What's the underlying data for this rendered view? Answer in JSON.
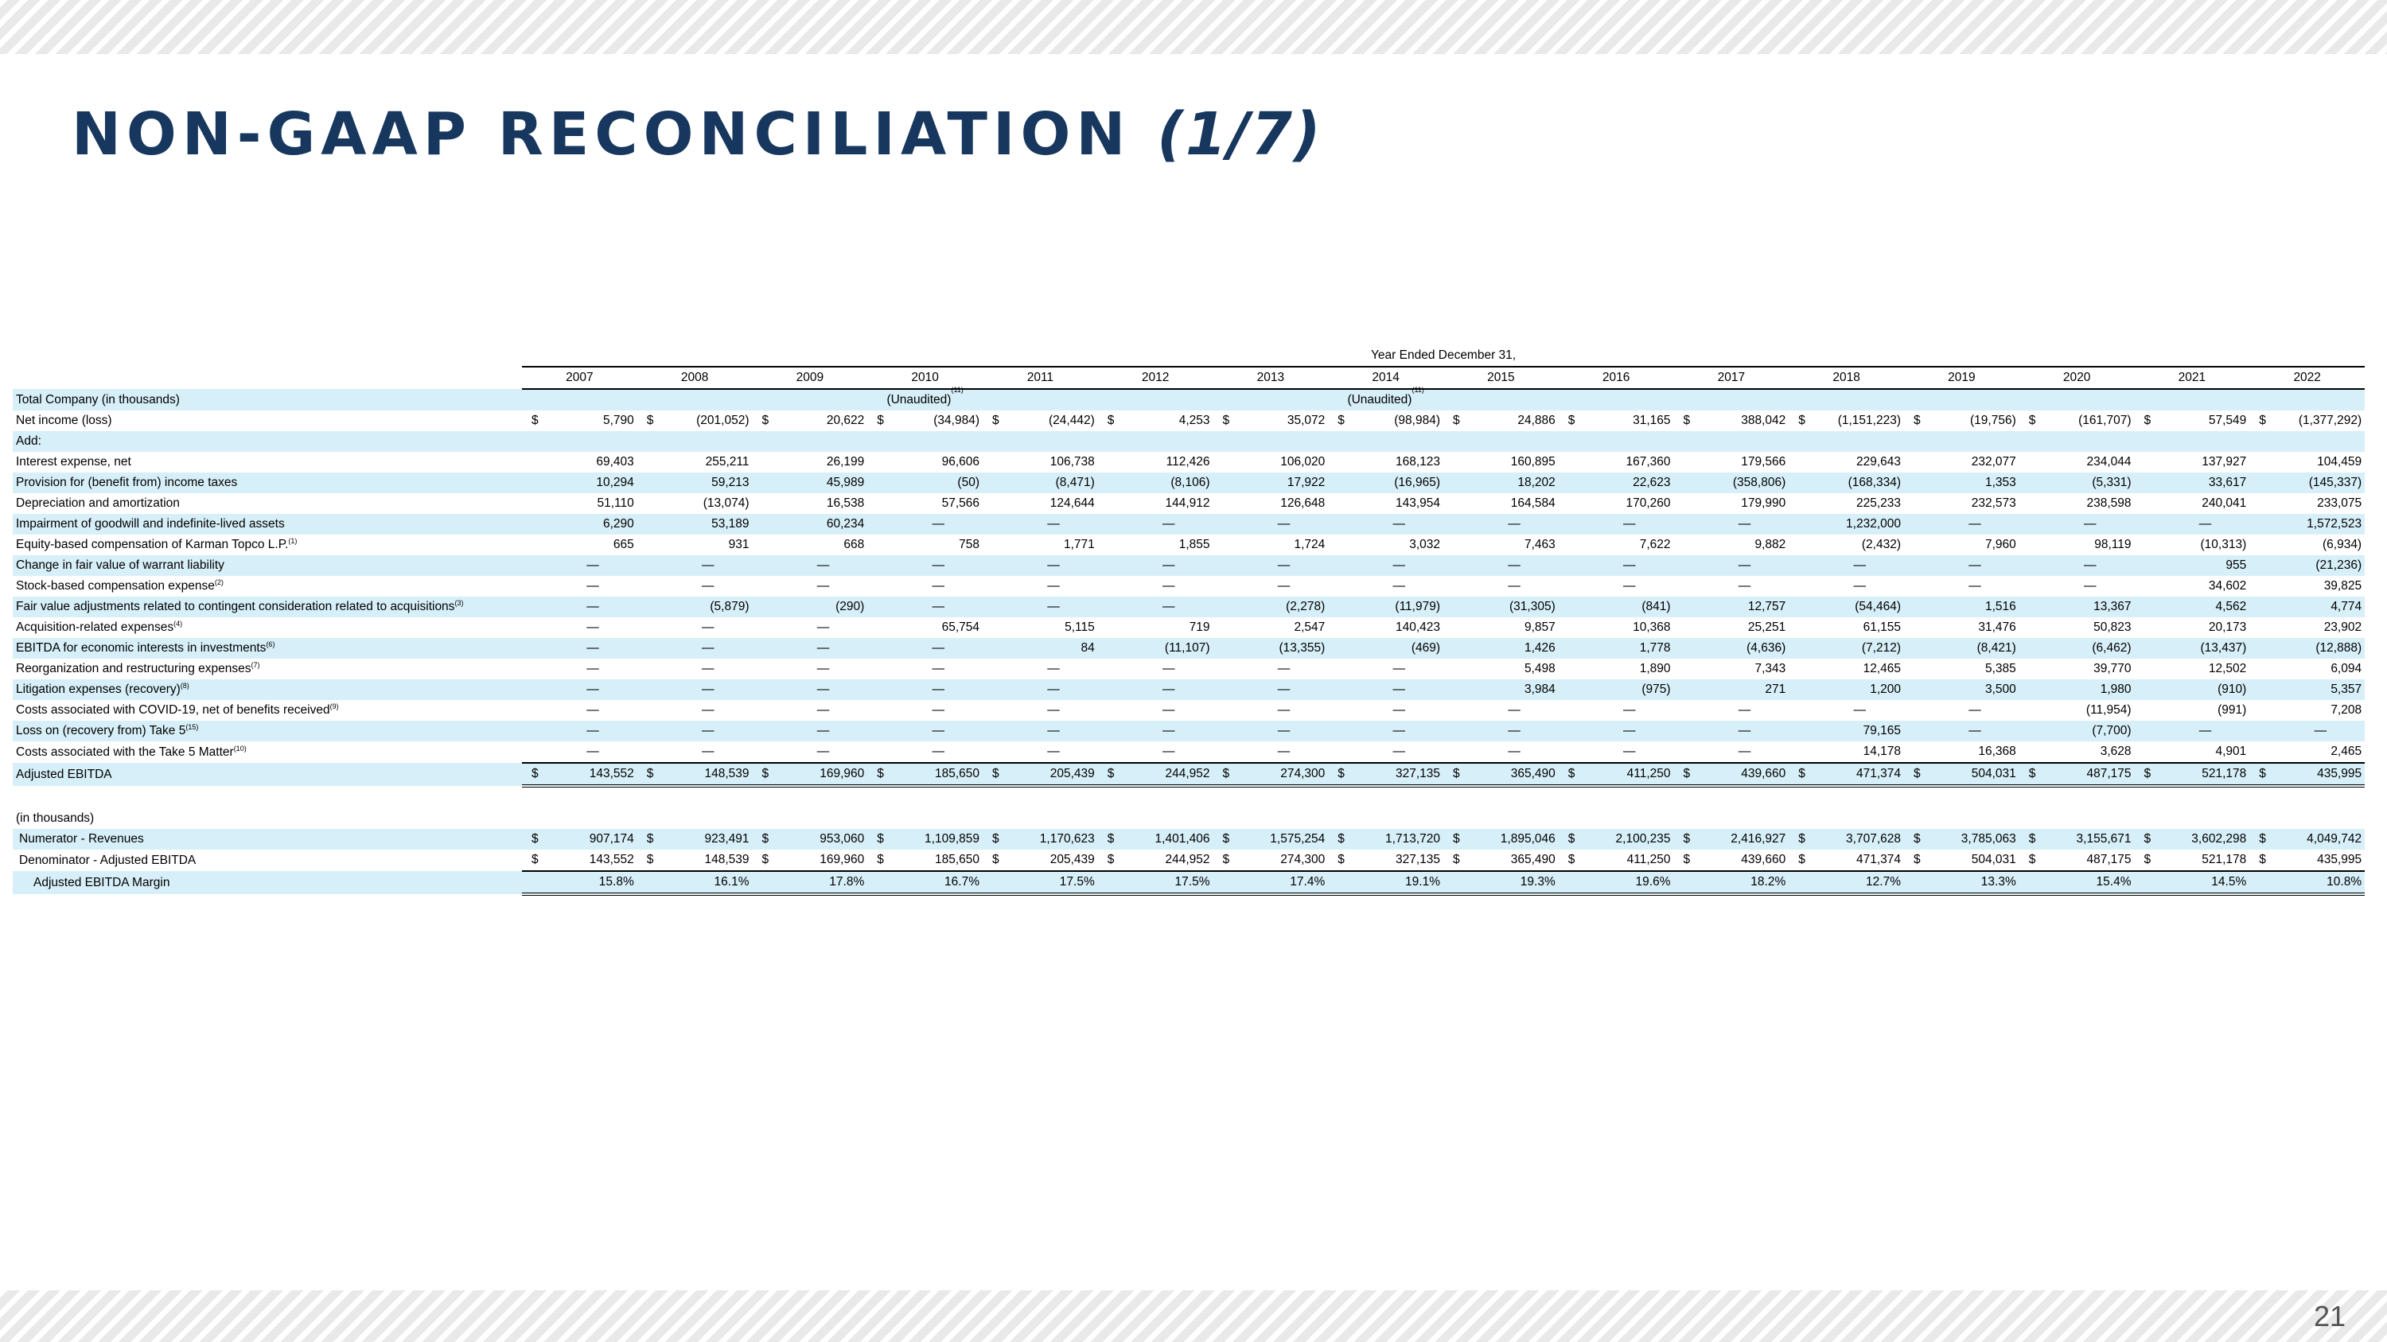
{
  "slide": {
    "title": "NON-GAAP RECONCILIATION",
    "title_part": "(1/7)",
    "page_number": "21"
  },
  "table": {
    "group_header": "Year Ended December 31,",
    "years": [
      "2007",
      "2008",
      "2009",
      "2010",
      "2011",
      "2012",
      "2013",
      "2014",
      "2015",
      "2016",
      "2017",
      "2018",
      "2019",
      "2020",
      "2021",
      "2022"
    ],
    "section_label": "Total Company (in thousands)",
    "unaudited_label": "(Unaudited)",
    "unaudited_sup": "(11)",
    "unaudited_years": [
      "2010",
      "2014"
    ],
    "rows": [
      {
        "label": "Net income (loss)",
        "sup": "",
        "dollar": true,
        "shaded": false,
        "values": [
          "5,790",
          "(201,052)",
          "20,622",
          "(34,984)",
          "(24,442)",
          "4,253",
          "35,072",
          "(98,984)",
          "24,886",
          "31,165",
          "388,042",
          "(1,151,223)",
          "(19,756)",
          "(161,707)",
          "57,549",
          "(1,377,292)"
        ]
      },
      {
        "label": "Add:",
        "sup": "",
        "dollar": false,
        "shaded": true,
        "values": []
      },
      {
        "label": "Interest expense, net",
        "sup": "",
        "dollar": false,
        "shaded": false,
        "values": [
          "69,403",
          "255,211",
          "26,199",
          "96,606",
          "106,738",
          "112,426",
          "106,020",
          "168,123",
          "160,895",
          "167,360",
          "179,566",
          "229,643",
          "232,077",
          "234,044",
          "137,927",
          "104,459"
        ]
      },
      {
        "label": "Provision for (benefit from) income taxes",
        "sup": "",
        "dollar": false,
        "shaded": true,
        "values": [
          "10,294",
          "59,213",
          "45,989",
          "(50)",
          "(8,471)",
          "(8,106)",
          "17,922",
          "(16,965)",
          "18,202",
          "22,623",
          "(358,806)",
          "(168,334)",
          "1,353",
          "(5,331)",
          "33,617",
          "(145,337)"
        ]
      },
      {
        "label": "Depreciation and amortization",
        "sup": "",
        "dollar": false,
        "shaded": false,
        "values": [
          "51,110",
          "(13,074)",
          "16,538",
          "57,566",
          "124,644",
          "144,912",
          "126,648",
          "143,954",
          "164,584",
          "170,260",
          "179,990",
          "225,233",
          "232,573",
          "238,598",
          "240,041",
          "233,075"
        ]
      },
      {
        "label": "Impairment of goodwill and indefinite-lived assets",
        "sup": "",
        "dollar": false,
        "shaded": true,
        "values": [
          "6,290",
          "53,189",
          "60,234",
          "—",
          "—",
          "—",
          "—",
          "—",
          "—",
          "—",
          "—",
          "1,232,000",
          "—",
          "—",
          "—",
          "1,572,523"
        ]
      },
      {
        "label": "Equity-based compensation of Karman Topco L.P.",
        "sup": "(1)",
        "dollar": false,
        "shaded": false,
        "values": [
          "665",
          "931",
          "668",
          "758",
          "1,771",
          "1,855",
          "1,724",
          "3,032",
          "7,463",
          "7,622",
          "9,882",
          "(2,432)",
          "7,960",
          "98,119",
          "(10,313)",
          "(6,934)"
        ]
      },
      {
        "label": "Change in fair value of warrant liability",
        "sup": "",
        "dollar": false,
        "shaded": true,
        "values": [
          "—",
          "—",
          "—",
          "—",
          "—",
          "—",
          "—",
          "—",
          "—",
          "—",
          "—",
          "—",
          "—",
          "—",
          "955",
          "(21,236)"
        ]
      },
      {
        "label": "Stock-based compensation expense",
        "sup": "(2)",
        "dollar": false,
        "shaded": false,
        "values": [
          "—",
          "—",
          "—",
          "—",
          "—",
          "—",
          "—",
          "—",
          "—",
          "—",
          "—",
          "—",
          "—",
          "—",
          "34,602",
          "39,825"
        ]
      },
      {
        "label": "Fair value adjustments related to contingent consideration related to acquisitions",
        "sup": "(3)",
        "dollar": false,
        "shaded": true,
        "values": [
          "—",
          "(5,879)",
          "(290)",
          "—",
          "—",
          "—",
          "(2,278)",
          "(11,979)",
          "(31,305)",
          "(841)",
          "12,757",
          "(54,464)",
          "1,516",
          "13,367",
          "4,562",
          "4,774"
        ]
      },
      {
        "label": "Acquisition-related expenses",
        "sup": "(4)",
        "dollar": false,
        "shaded": false,
        "values": [
          "—",
          "—",
          "—",
          "65,754",
          "5,115",
          "719",
          "2,547",
          "140,423",
          "9,857",
          "10,368",
          "25,251",
          "61,155",
          "31,476",
          "50,823",
          "20,173",
          "23,902"
        ]
      },
      {
        "label": "EBITDA for economic interests in investments",
        "sup": "(6)",
        "dollar": false,
        "shaded": true,
        "values": [
          "—",
          "—",
          "—",
          "—",
          "84",
          "(11,107)",
          "(13,355)",
          "(469)",
          "1,426",
          "1,778",
          "(4,636)",
          "(7,212)",
          "(8,421)",
          "(6,462)",
          "(13,437)",
          "(12,888)"
        ]
      },
      {
        "label": "Reorganization and restructuring expenses",
        "sup": "(7)",
        "dollar": false,
        "shaded": false,
        "values": [
          "—",
          "—",
          "—",
          "—",
          "—",
          "—",
          "—",
          "—",
          "5,498",
          "1,890",
          "7,343",
          "12,465",
          "5,385",
          "39,770",
          "12,502",
          "6,094"
        ]
      },
      {
        "label": "Litigation expenses (recovery)",
        "sup": "(8)",
        "dollar": false,
        "shaded": true,
        "values": [
          "—",
          "—",
          "—",
          "—",
          "—",
          "—",
          "—",
          "—",
          "3,984",
          "(975)",
          "271",
          "1,200",
          "3,500",
          "1,980",
          "(910)",
          "5,357"
        ]
      },
      {
        "label": "Costs associated with COVID-19, net of benefits received",
        "sup": "(9)",
        "dollar": false,
        "shaded": false,
        "values": [
          "—",
          "—",
          "—",
          "—",
          "—",
          "—",
          "—",
          "—",
          "—",
          "—",
          "—",
          "—",
          "—",
          "(11,954)",
          "(991)",
          "7,208"
        ]
      },
      {
        "label": "Loss on (recovery from) Take 5",
        "sup": "(15)",
        "dollar": false,
        "shaded": true,
        "values": [
          "—",
          "—",
          "—",
          "—",
          "—",
          "—",
          "—",
          "—",
          "—",
          "—",
          "—",
          "79,165",
          "—",
          "(7,700)",
          "—",
          "—"
        ]
      },
      {
        "label": "Costs associated with the Take 5 Matter",
        "sup": "(10)",
        "dollar": false,
        "shaded": false,
        "values": [
          "—",
          "—",
          "—",
          "—",
          "—",
          "—",
          "—",
          "—",
          "—",
          "—",
          "—",
          "14,178",
          "16,368",
          "3,628",
          "4,901",
          "2,465"
        ]
      },
      {
        "label": "Adjusted EBITDA",
        "sup": "",
        "dollar": true,
        "shaded": true,
        "total": true,
        "values": [
          "143,552",
          "148,539",
          "169,960",
          "185,650",
          "205,439",
          "244,952",
          "274,300",
          "327,135",
          "365,490",
          "411,250",
          "439,660",
          "471,374",
          "504,031",
          "487,175",
          "521,178",
          "435,995"
        ]
      }
    ],
    "margin_section_label": "(in thousands)",
    "margin_rows": [
      {
        "label": "Numerator - Revenues",
        "style": "ind",
        "dollar": true,
        "shaded": true,
        "values": [
          "907,174",
          "923,491",
          "953,060",
          "1,109,859",
          "1,170,623",
          "1,401,406",
          "1,575,254",
          "1,713,720",
          "1,895,046",
          "2,100,235",
          "2,416,927",
          "3,707,628",
          "3,785,063",
          "3,155,671",
          "3,602,298",
          "4,049,742"
        ]
      },
      {
        "label": "Denominator - Adjusted EBITDA",
        "style": "ind",
        "dollar": true,
        "shaded": false,
        "underline": true,
        "values": [
          "143,552",
          "148,539",
          "169,960",
          "185,650",
          "205,439",
          "244,952",
          "274,300",
          "327,135",
          "365,490",
          "411,250",
          "439,660",
          "471,374",
          "504,031",
          "487,175",
          "521,178",
          "435,995"
        ]
      },
      {
        "label": "Adjusted EBITDA Margin",
        "style": "ind2",
        "dollar": false,
        "shaded": true,
        "double": true,
        "values": [
          "15.8%",
          "16.1%",
          "17.8%",
          "16.7%",
          "17.5%",
          "17.5%",
          "17.4%",
          "19.1%",
          "19.3%",
          "19.6%",
          "18.2%",
          "12.7%",
          "13.3%",
          "15.4%",
          "14.5%",
          "10.8%"
        ]
      }
    ]
  }
}
